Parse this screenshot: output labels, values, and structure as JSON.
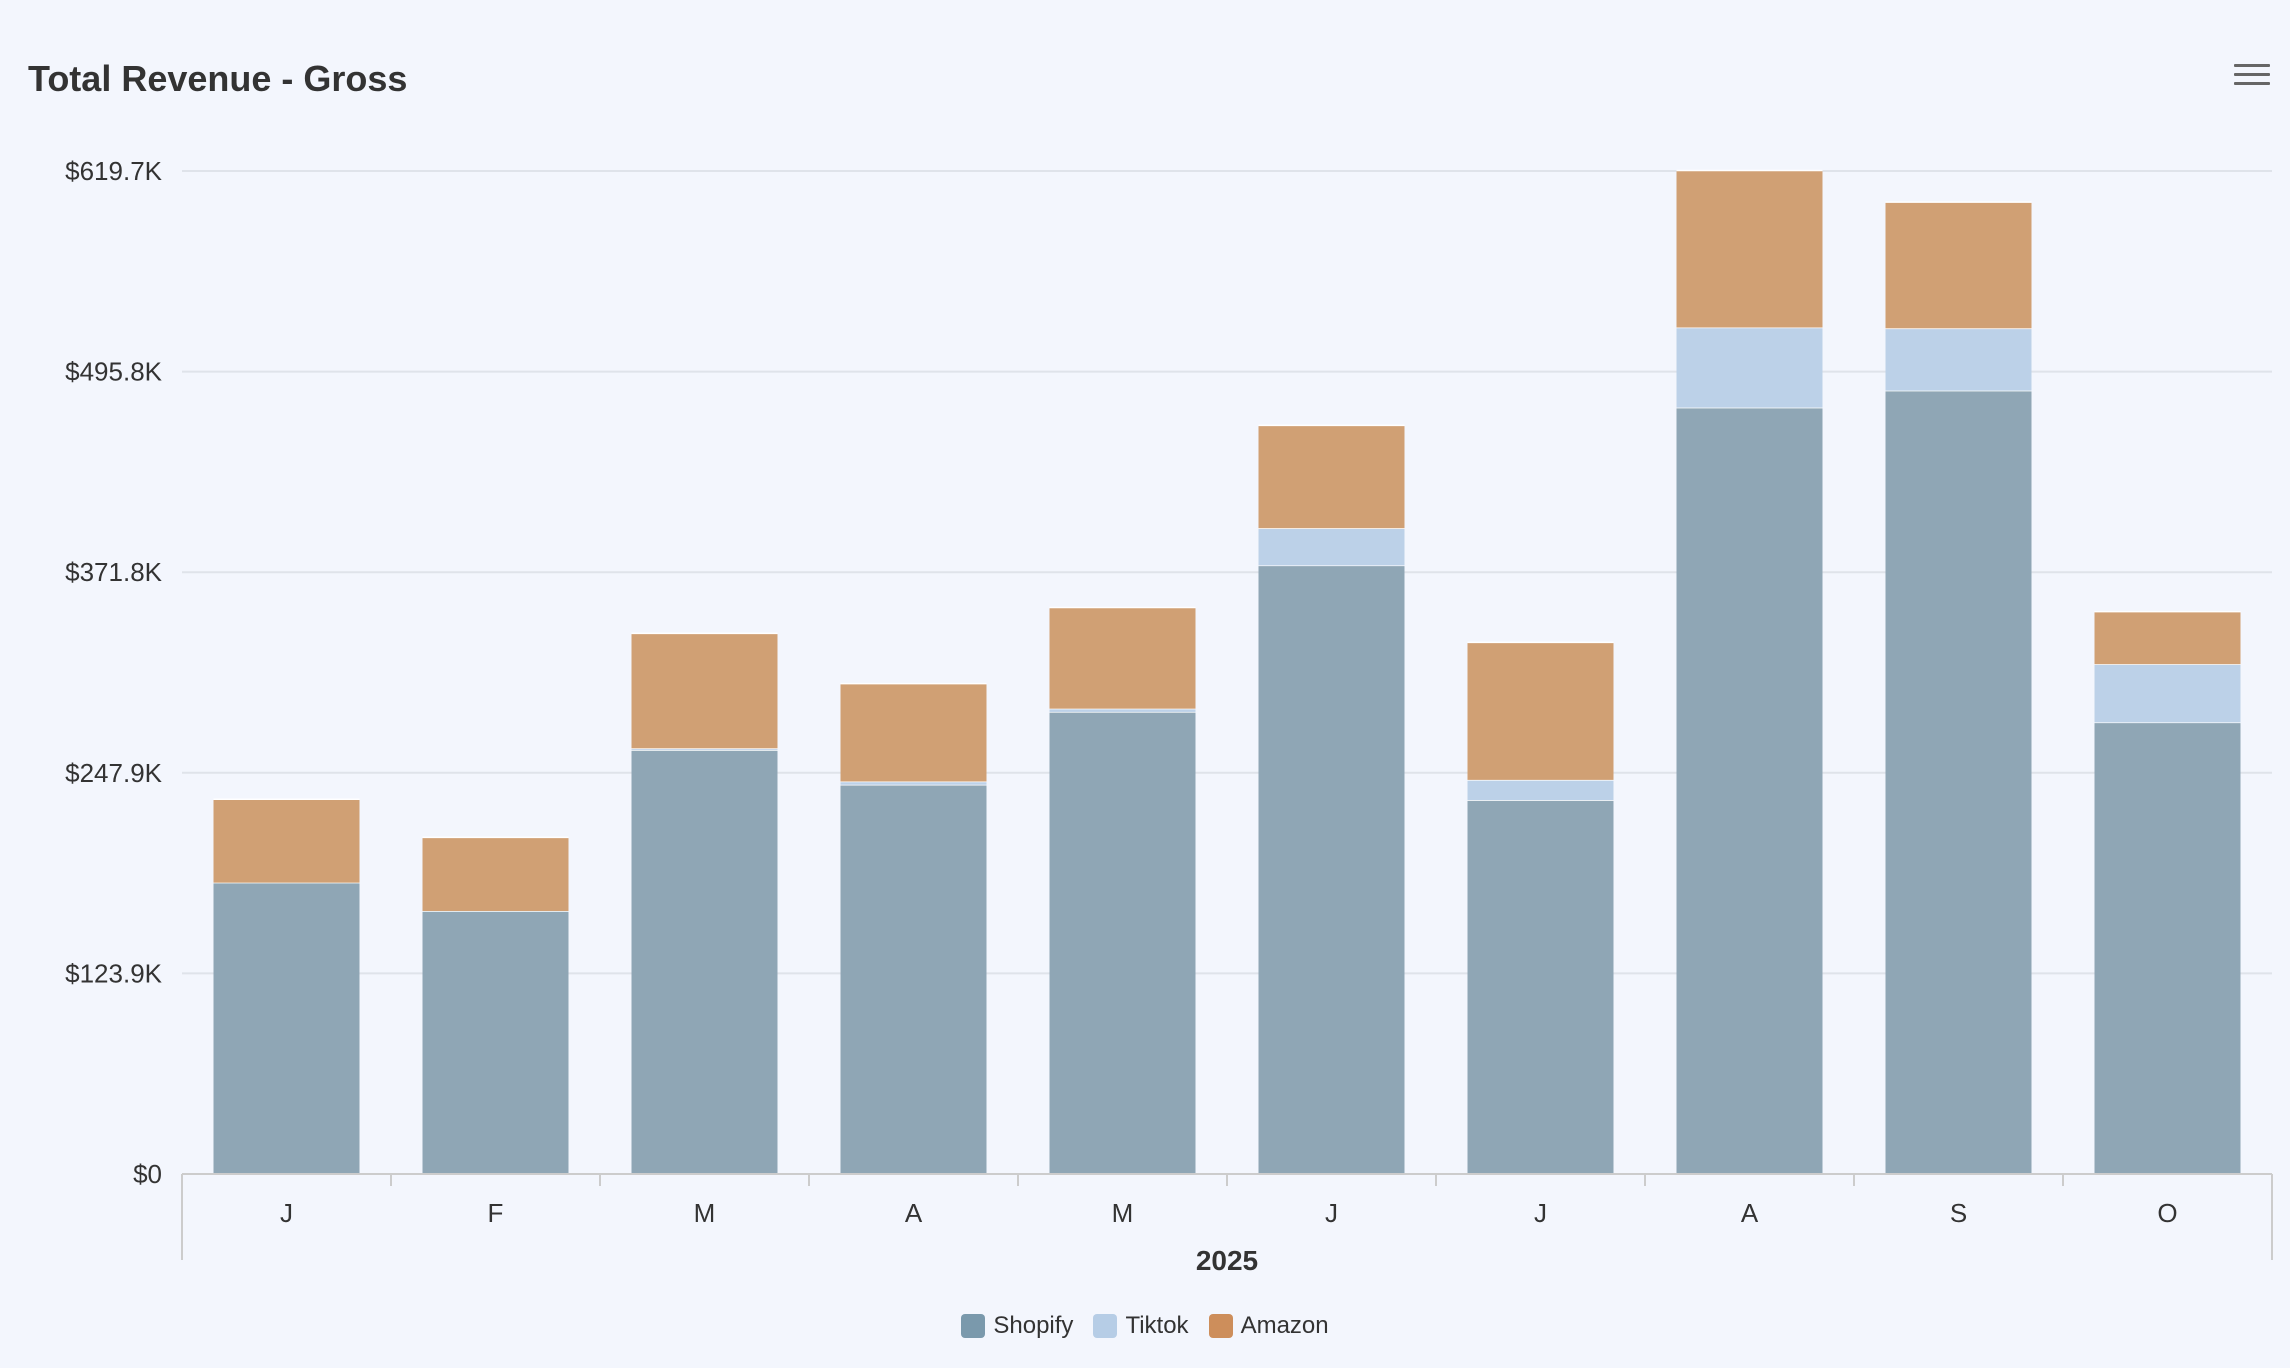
{
  "title": "Total Revenue - Gross",
  "menu_icon": "hamburger-menu-icon",
  "colors": {
    "background": "#f3f6fd",
    "grid": "#dfe3ea",
    "axis": "#cccccc"
  },
  "chart_data": {
    "type": "bar",
    "stacked": true,
    "title": "Total Revenue - Gross",
    "xlabel": "2025",
    "ylabel": "",
    "categories": [
      "J",
      "F",
      "M",
      "A",
      "M",
      "J",
      "J",
      "A",
      "S",
      "O"
    ],
    "yticks": [
      "$0",
      "$123.9K",
      "$247.9K",
      "$371.8K",
      "$495.8K",
      "$619.7K"
    ],
    "ylim": [
      0,
      619700
    ],
    "grid": true,
    "legend_position": "bottom-center",
    "series": [
      {
        "name": "Shopify",
        "color": "#8fa6b5",
        "legend_color": "#7a99ac",
        "values": [
          180000,
          162500,
          262000,
          240500,
          285500,
          376000,
          231000,
          473500,
          484000,
          279000
        ]
      },
      {
        "name": "Tiktok",
        "color": "#bcd1e8",
        "legend_color": "#b6cde6",
        "values": [
          0,
          0,
          1000,
          2000,
          2000,
          23000,
          12500,
          49500,
          38500,
          36000
        ]
      },
      {
        "name": "Amazon",
        "color": "#d0a074",
        "legend_color": "#cd8e5b",
        "values": [
          51500,
          45500,
          71000,
          60500,
          62500,
          63500,
          85000,
          97000,
          78000,
          32500
        ]
      }
    ]
  }
}
